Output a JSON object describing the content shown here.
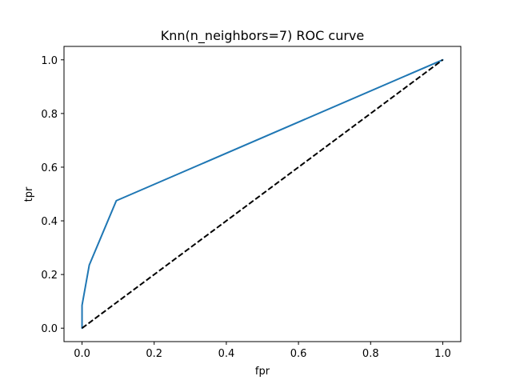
{
  "chart_data": {
    "type": "line",
    "title": "Knn(n_neighbors=7) ROC curve",
    "xlabel": "fpr",
    "ylabel": "tpr",
    "xlim": [
      -0.05,
      1.05
    ],
    "ylim": [
      -0.05,
      1.05
    ],
    "xticks": [
      0.0,
      0.2,
      0.4,
      0.6,
      0.8,
      1.0
    ],
    "yticks": [
      0.0,
      0.2,
      0.4,
      0.6,
      0.8,
      1.0
    ],
    "xtick_labels": [
      "0.0",
      "0.2",
      "0.4",
      "0.6",
      "0.8",
      "1.0"
    ],
    "ytick_labels": [
      "0.0",
      "0.2",
      "0.4",
      "0.6",
      "0.8",
      "1.0"
    ],
    "grid": false,
    "series": [
      {
        "color": "#1f77b4",
        "style": "solid",
        "x": [
          0.0,
          0.0,
          0.0,
          0.02,
          0.095,
          1.0
        ],
        "y": [
          0.0,
          0.04,
          0.085,
          0.235,
          0.475,
          1.0
        ]
      },
      {
        "color": "#000000",
        "style": "dashed",
        "x": [
          0.0,
          1.0
        ],
        "y": [
          0.0,
          1.0
        ]
      }
    ]
  }
}
